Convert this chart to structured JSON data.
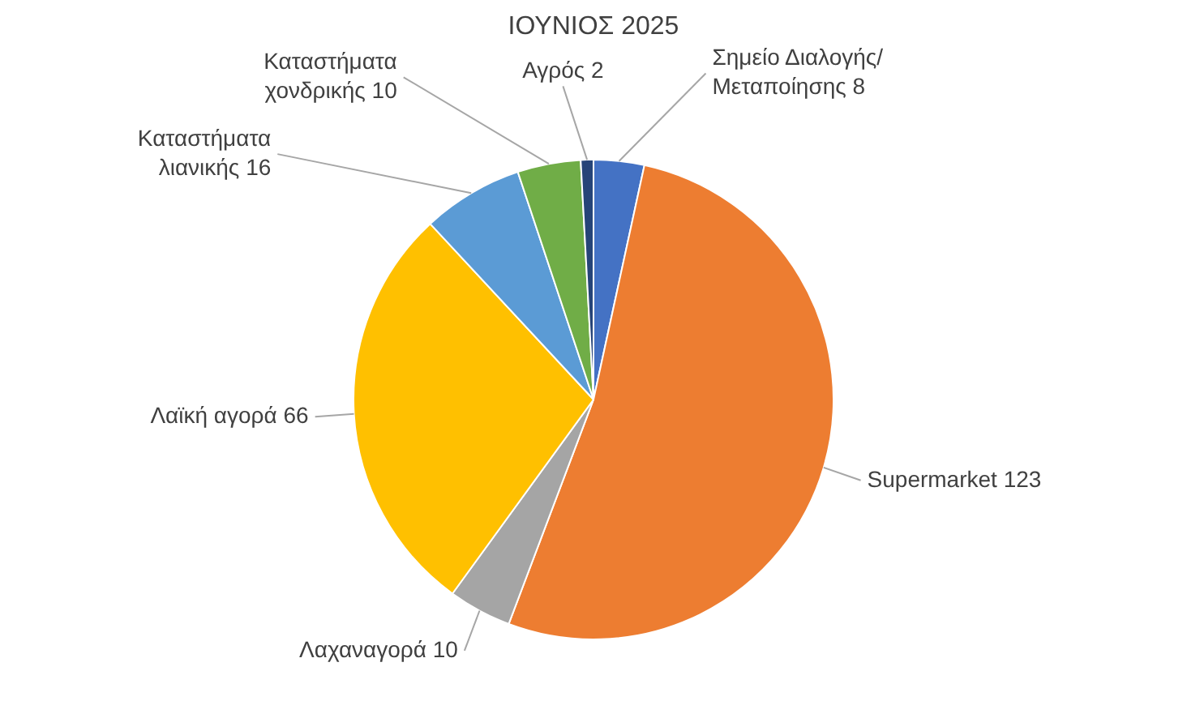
{
  "chart_data": {
    "type": "pie",
    "title": "ΙΟΥΝΙΟΣ 2025",
    "categories": [
      "Σημείο Διαλογής/ Μεταποίησης",
      "Supermarket",
      "Λαχαναγορά",
      "Λαϊκή αγορά",
      "Καταστήματα λιανικής",
      "Καταστήματα χονδρικής",
      "Αγρός"
    ],
    "values": [
      8,
      123,
      10,
      66,
      16,
      10,
      2
    ],
    "colors": [
      "#4472c4",
      "#ed7d31",
      "#a5a5a5",
      "#ffc000",
      "#5b9bd5",
      "#70ad47",
      "#264478"
    ],
    "data_labels": true,
    "legend": false
  }
}
